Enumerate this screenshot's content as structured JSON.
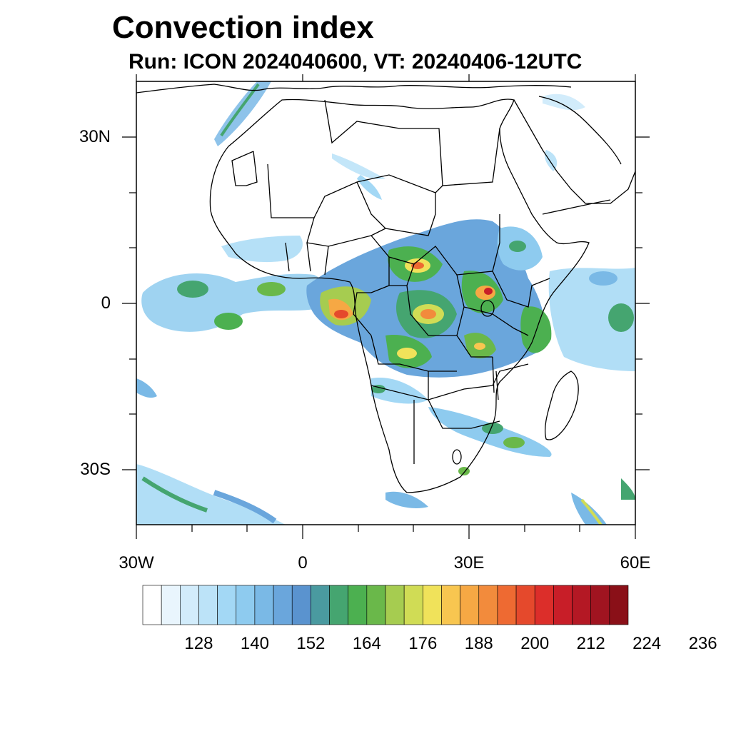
{
  "title": "Convection index",
  "subtitle": "Run: ICON 2024040600,  VT: 20240406-12UTC",
  "lat_labels": [
    "30N",
    "0",
    "30S"
  ],
  "lon_labels": [
    "30W",
    "0",
    "30E",
    "60E"
  ],
  "colorbar": {
    "tick_labels": [
      "128",
      "140",
      "152",
      "164",
      "176",
      "188",
      "200",
      "212",
      "224",
      "236"
    ],
    "colors": [
      "#ffffff",
      "#e9f5fd",
      "#d2ecfb",
      "#bce3f8",
      "#a3d8f5",
      "#8ecbef",
      "#7ab9e6",
      "#6aa6dc",
      "#5a93cf",
      "#4a9aa0",
      "#45a570",
      "#4cb050",
      "#6ab84a",
      "#a6cc50",
      "#d0dc55",
      "#f0e25a",
      "#f8c650",
      "#f6a844",
      "#f28b3c",
      "#ee6a32",
      "#e5492c",
      "#dc2e2a",
      "#c81e28",
      "#b41824",
      "#a01420",
      "#8a1018"
    ]
  },
  "map_extent": {
    "lon": [
      -30,
      60
    ],
    "lat": [
      -40,
      40
    ]
  }
}
